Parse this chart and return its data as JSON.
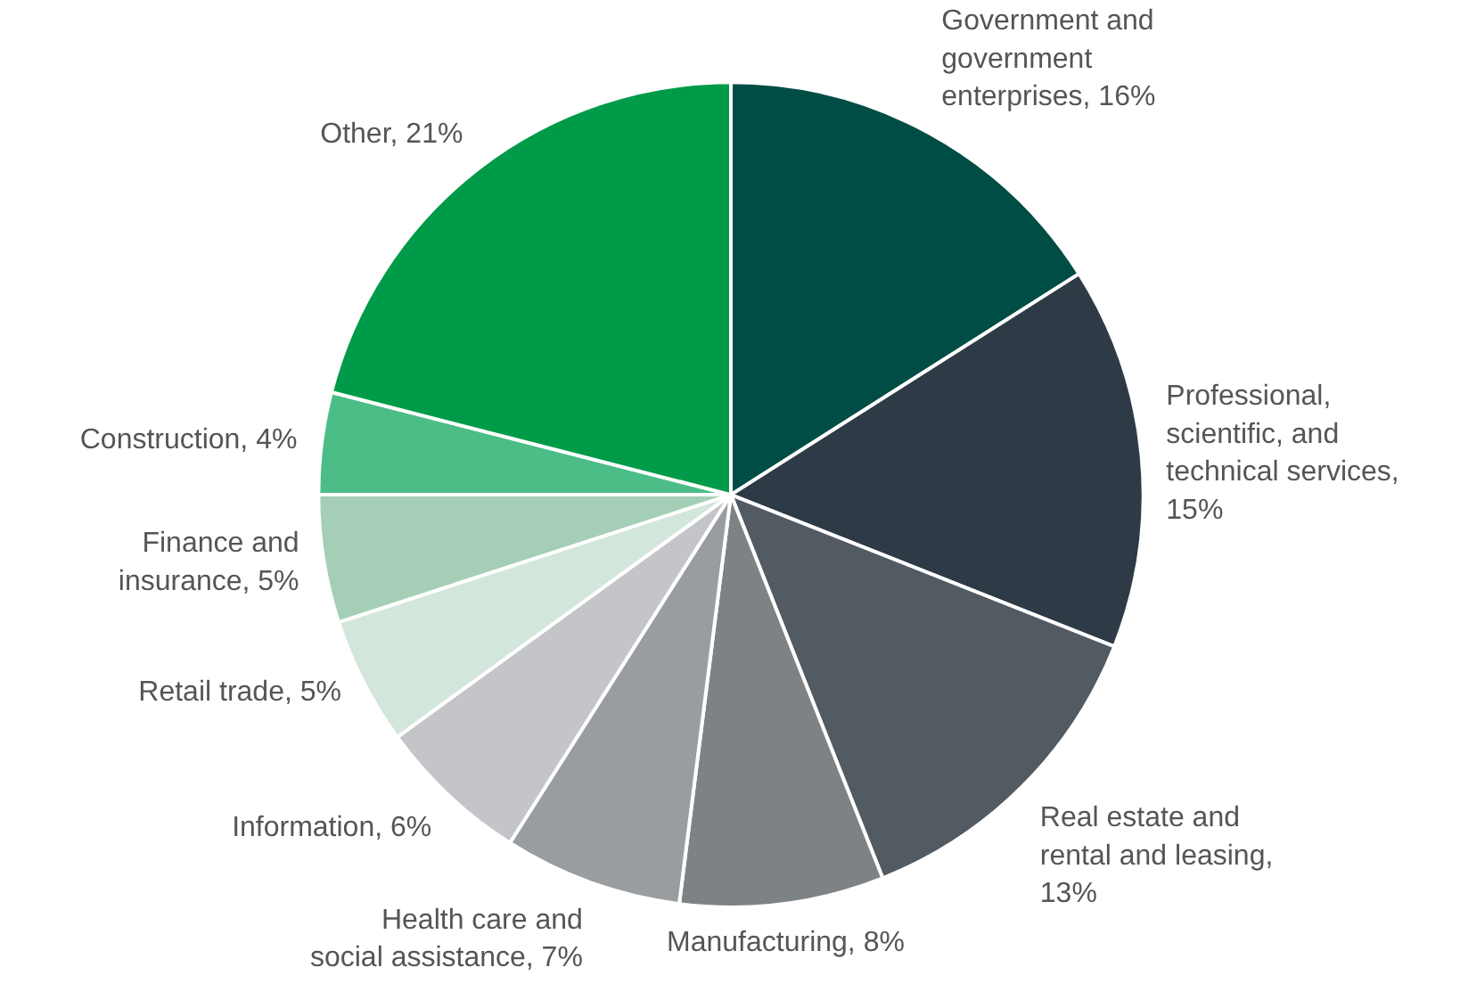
{
  "chart_data": {
    "type": "pie",
    "categories": [
      "Government and government enterprises, 16%",
      "Professional, scientific, and technical services, 15%",
      "Real estate and rental and leasing, 13%",
      "Manufacturing, 8%",
      "Health care and social assistance, 7%",
      "Information, 6%",
      "Retail trade, 5%",
      "Finance and insurance, 5%",
      "Construction, 4%",
      "Other, 21%"
    ],
    "values": [
      16,
      15,
      13,
      8,
      7,
      6,
      5,
      5,
      4,
      21
    ],
    "colors": [
      "#004d45",
      "#2e3b47",
      "#525a62",
      "#7d8384",
      "#9a9d9f",
      "#c4c5c9",
      "#d2e6dc",
      "#a4cfb6",
      "#4dbd87",
      "#009b48"
    ]
  }
}
